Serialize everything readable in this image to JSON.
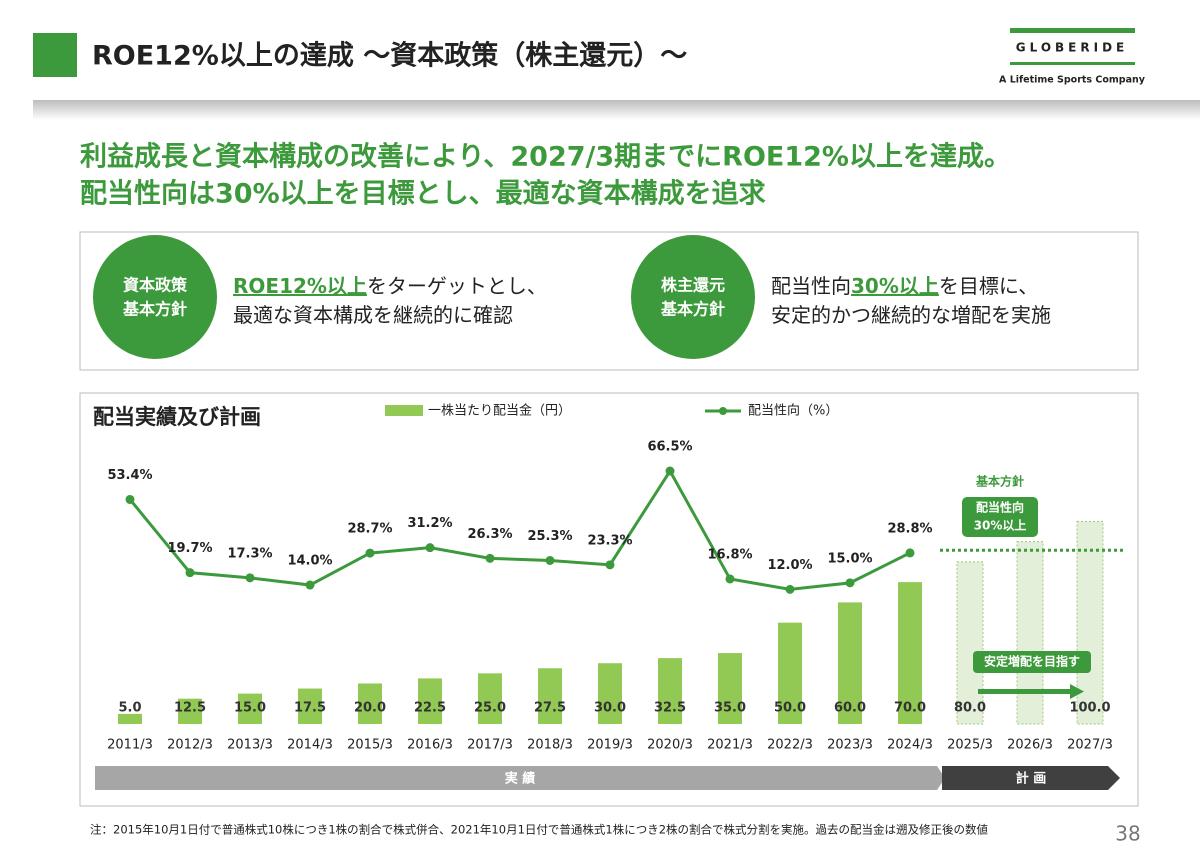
{
  "header": {
    "title": "ROE12%以上の達成 ～資本政策（株主還元）～",
    "logo": "GLOBERIDE",
    "tagline": "A Lifetime Sports Company"
  },
  "headline": [
    "利益成長と資本構成の改善により、2027/3期までにROE12%以上を達成。",
    "配当性向は30%以上を目標とし、最適な資本構成を追求"
  ],
  "policies": [
    {
      "badge": [
        "資本政策",
        "基本方針"
      ],
      "lines": [
        [
          {
            "text": "ROE12%以上",
            "highlight": true
          },
          {
            "text": "をターゲットとし、"
          }
        ],
        [
          {
            "text": "最適な資本構成を継続的に確認"
          }
        ]
      ]
    },
    {
      "badge": [
        "株主還元",
        "基本方針"
      ],
      "lines": [
        [
          {
            "text": "配当性向"
          },
          {
            "text": "30%以上",
            "highlight": true
          },
          {
            "text": "を目標に、"
          }
        ],
        [
          {
            "text": "安定的かつ継続的な増配を実施"
          }
        ]
      ]
    }
  ],
  "chart_data": {
    "type": "bar_line",
    "title": "配当実績及び計画",
    "categories": [
      "2011/3",
      "2012/3",
      "2013/3",
      "2014/3",
      "2015/3",
      "2016/3",
      "2017/3",
      "2018/3",
      "2019/3",
      "2020/3",
      "2021/3",
      "2022/3",
      "2023/3",
      "2024/3",
      "2025/3",
      "2026/3",
      "2027/3"
    ],
    "series": [
      {
        "name": "一株当たり配当金（円）",
        "type": "bar",
        "color": "#92c954",
        "values": [
          5,
          12.5,
          15,
          17.5,
          20,
          22.5,
          25,
          27.5,
          30,
          32.5,
          35,
          50,
          60,
          70,
          80,
          90,
          100
        ],
        "value_labels": [
          "5.0",
          "12.5",
          "15.0",
          "17.5",
          "20.0",
          "22.5",
          "25.0",
          "27.5",
          "30.0",
          "32.5",
          "35.0",
          "50.0",
          "60.0",
          "70.0",
          "80.0",
          null,
          "100.0"
        ]
      },
      {
        "name": "配当性向（%）",
        "type": "line",
        "axis": "y2",
        "color": "#3c9a3c",
        "values": [
          53.4,
          19.7,
          17.3,
          14.0,
          28.7,
          31.2,
          26.3,
          25.3,
          23.3,
          66.5,
          16.8,
          12.0,
          15.0,
          28.8,
          null,
          null,
          null
        ],
        "value_labels": [
          "53.4%",
          "19.7%",
          "17.3%",
          "14.0%",
          "28.7%",
          "31.2%",
          "26.3%",
          "25.3%",
          "23.3%",
          "66.5%",
          "16.8%",
          "12.0%",
          "15.0%",
          "28.8%",
          null,
          null,
          null
        ]
      }
    ],
    "ylim": [
      0,
      150
    ],
    "y2lim": [
      -50,
      90
    ],
    "annotations": {
      "policy_title": "基本方針",
      "target_label": [
        "配当性向",
        "30%以上"
      ],
      "target_value": 30,
      "goal": "安定増配を目指す"
    },
    "phases": [
      "実 績",
      "計 画"
    ]
  },
  "footnote": "注：2015年10月1日付で普通株式10株につき1株の割合で株式併合、2021年10月1日付で普通株式1株につき2株の割合で株式分割を実施。過去の配当金は遡及修正後の数値",
  "page_number": "38"
}
